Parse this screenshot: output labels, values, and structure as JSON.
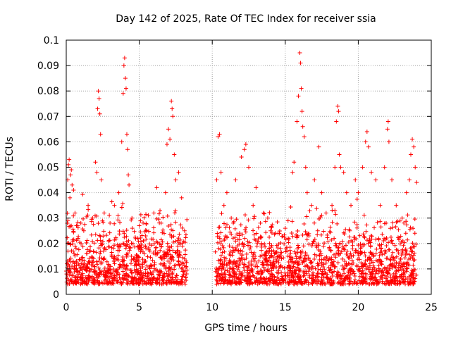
{
  "chart_data": {
    "type": "scatter",
    "title": "Day 142 of 2025, Rate Of TEC Index for receiver ssia",
    "xlabel": "GPS time / hours",
    "ylabel": "ROTI / TECUs",
    "xlim": [
      0,
      25
    ],
    "ylim": [
      0,
      0.1
    ],
    "x_ticks": [
      "0",
      "5",
      "10",
      "15",
      "20",
      "25"
    ],
    "y_ticks": [
      "0",
      "0.01",
      "0.02",
      "0.03",
      "0.04",
      "0.05",
      "0.06",
      "0.07",
      "0.08",
      "0.09",
      "0.1"
    ],
    "grid": true,
    "legend": "none",
    "marker": "plus",
    "color": "#ff0000",
    "data_gap_hours": [
      8.3,
      10.2
    ],
    "series": [
      {
        "points": [
          [
            0.05,
            0.012
          ],
          [
            0.1,
            0.045
          ],
          [
            0.15,
            0.051
          ],
          [
            0.2,
            0.053
          ],
          [
            0.25,
            0.038
          ],
          [
            0.3,
            0.047
          ],
          [
            0.35,
            0.049
          ],
          [
            0.4,
            0.043
          ],
          [
            0.5,
            0.041
          ],
          [
            0.6,
            0.032
          ],
          [
            0.7,
            0.027
          ],
          [
            0.8,
            0.022
          ],
          [
            1.0,
            0.028
          ],
          [
            1.2,
            0.025
          ],
          [
            1.5,
            0.035
          ],
          [
            1.8,
            0.03
          ],
          [
            2.0,
            0.052
          ],
          [
            2.1,
            0.048
          ],
          [
            2.15,
            0.073
          ],
          [
            2.2,
            0.08
          ],
          [
            2.25,
            0.077
          ],
          [
            2.3,
            0.071
          ],
          [
            2.35,
            0.063
          ],
          [
            2.4,
            0.045
          ],
          [
            2.6,
            0.032
          ],
          [
            3.0,
            0.028
          ],
          [
            3.3,
            0.035
          ],
          [
            3.6,
            0.04
          ],
          [
            3.8,
            0.06
          ],
          [
            3.9,
            0.079
          ],
          [
            3.95,
            0.09
          ],
          [
            4.0,
            0.093
          ],
          [
            4.05,
            0.085
          ],
          [
            4.1,
            0.081
          ],
          [
            4.15,
            0.063
          ],
          [
            4.2,
            0.057
          ],
          [
            4.25,
            0.047
          ],
          [
            4.3,
            0.043
          ],
          [
            4.5,
            0.03
          ],
          [
            5.0,
            0.027
          ],
          [
            5.5,
            0.025
          ],
          [
            6.0,
            0.032
          ],
          [
            6.2,
            0.042
          ],
          [
            6.5,
            0.028
          ],
          [
            6.8,
            0.04
          ],
          [
            6.9,
            0.059
          ],
          [
            7.0,
            0.065
          ],
          [
            7.1,
            0.061
          ],
          [
            7.2,
            0.076
          ],
          [
            7.25,
            0.073
          ],
          [
            7.3,
            0.07
          ],
          [
            7.4,
            0.055
          ],
          [
            7.5,
            0.045
          ],
          [
            7.7,
            0.048
          ],
          [
            7.9,
            0.038
          ],
          [
            8.1,
            0.025
          ],
          [
            10.3,
            0.045
          ],
          [
            10.4,
            0.062
          ],
          [
            10.5,
            0.063
          ],
          [
            10.6,
            0.048
          ],
          [
            10.8,
            0.035
          ],
          [
            11.0,
            0.04
          ],
          [
            11.3,
            0.03
          ],
          [
            11.6,
            0.045
          ],
          [
            12.0,
            0.054
          ],
          [
            12.2,
            0.057
          ],
          [
            12.3,
            0.059
          ],
          [
            12.5,
            0.05
          ],
          [
            12.8,
            0.035
          ],
          [
            13.0,
            0.042
          ],
          [
            13.3,
            0.028
          ],
          [
            13.5,
            0.032
          ],
          [
            13.8,
            0.03
          ],
          [
            14.0,
            0.025
          ],
          [
            14.5,
            0.024
          ],
          [
            15.0,
            0.026
          ],
          [
            15.2,
            0.022
          ],
          [
            15.5,
            0.048
          ],
          [
            15.6,
            0.052
          ],
          [
            15.8,
            0.068
          ],
          [
            15.9,
            0.078
          ],
          [
            16.0,
            0.095
          ],
          [
            16.05,
            0.091
          ],
          [
            16.1,
            0.081
          ],
          [
            16.15,
            0.072
          ],
          [
            16.2,
            0.066
          ],
          [
            16.3,
            0.062
          ],
          [
            16.4,
            0.05
          ],
          [
            16.5,
            0.04
          ],
          [
            16.8,
            0.035
          ],
          [
            17.0,
            0.045
          ],
          [
            17.3,
            0.058
          ],
          [
            17.5,
            0.04
          ],
          [
            17.8,
            0.032
          ],
          [
            18.2,
            0.035
          ],
          [
            18.4,
            0.05
          ],
          [
            18.5,
            0.068
          ],
          [
            18.6,
            0.074
          ],
          [
            18.65,
            0.072
          ],
          [
            18.7,
            0.055
          ],
          [
            18.8,
            0.05
          ],
          [
            19.0,
            0.048
          ],
          [
            19.2,
            0.04
          ],
          [
            19.5,
            0.035
          ],
          [
            19.8,
            0.045
          ],
          [
            20.0,
            0.04
          ],
          [
            20.3,
            0.05
          ],
          [
            20.5,
            0.06
          ],
          [
            20.6,
            0.064
          ],
          [
            20.7,
            0.058
          ],
          [
            20.9,
            0.048
          ],
          [
            21.2,
            0.045
          ],
          [
            21.5,
            0.035
          ],
          [
            21.8,
            0.05
          ],
          [
            22.0,
            0.065
          ],
          [
            22.05,
            0.068
          ],
          [
            22.1,
            0.06
          ],
          [
            22.3,
            0.045
          ],
          [
            22.6,
            0.035
          ],
          [
            23.0,
            0.03
          ],
          [
            23.3,
            0.04
          ],
          [
            23.5,
            0.045
          ],
          [
            23.6,
            0.055
          ],
          [
            23.7,
            0.061
          ],
          [
            23.8,
            0.058
          ],
          [
            23.9,
            0.05
          ],
          [
            24.0,
            0.044
          ]
        ]
      }
    ]
  }
}
